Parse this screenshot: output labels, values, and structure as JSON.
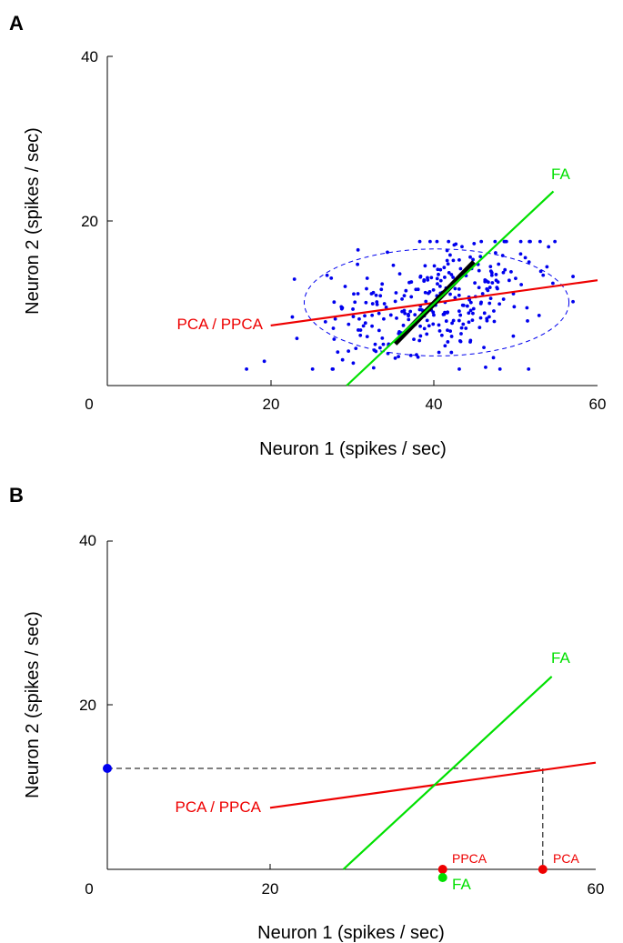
{
  "colors": {
    "points": "#0000ee",
    "pca": "#ee0000",
    "fa": "#00e000",
    "fa_segment": "#000000",
    "axis": "#000000"
  },
  "chart_data": [
    {
      "panel": "A",
      "type": "scatter",
      "xlabel": "Neuron 1 (spikes / sec)",
      "ylabel": "Neuron 2 (spikes / sec)",
      "xlim": [
        0,
        60
      ],
      "ylim": [
        0,
        40
      ],
      "x_ticks": [
        0,
        20,
        40,
        60
      ],
      "y_ticks": [
        20,
        40
      ],
      "points_description": "about 300 points centered near (40, 10), spread roughly x 22–57, y 2–17",
      "ellipse": {
        "center": [
          40.3,
          10.1
        ],
        "x_radius": 16.2,
        "y_radius": 6.5,
        "style": "dashed"
      },
      "lines": [
        {
          "label": "PCA / PPCA",
          "from": [
            20,
            7.3
          ],
          "to": [
            60,
            12.8
          ]
        },
        {
          "label": "FA",
          "from": [
            29.3,
            0
          ],
          "to": [
            54.6,
            23.6
          ]
        }
      ],
      "fa_segment": {
        "from": [
          35.2,
          5.1
        ],
        "to": [
          44.9,
          15.0
        ]
      }
    },
    {
      "panel": "B",
      "type": "line",
      "xlabel": "Neuron 1 (spikes / sec)",
      "ylabel": "Neuron 2 (spikes / sec)",
      "xlim": [
        0,
        60
      ],
      "ylim": [
        0,
        40
      ],
      "x_ticks": [
        0,
        20,
        60
      ],
      "y_ticks": [
        20,
        40
      ],
      "lines": [
        {
          "label": "PCA / PPCA",
          "from": [
            20,
            7.5
          ],
          "to": [
            60,
            13.0
          ]
        },
        {
          "label": "FA",
          "from": [
            29.0,
            0
          ],
          "to": [
            54.6,
            23.5
          ]
        }
      ],
      "observed_point": {
        "x": 0,
        "y": 12.3
      },
      "projections": [
        {
          "label": "PPCA",
          "x": 41.2,
          "y": 0
        },
        {
          "label": "PCA",
          "x": 53.5,
          "y": 0
        },
        {
          "label": "FA",
          "x": 41.2,
          "y": -1.0
        }
      ],
      "guides": [
        {
          "from": [
            0,
            12.3
          ],
          "to": [
            53.5,
            12.3
          ]
        },
        {
          "from": [
            53.5,
            12.3
          ],
          "to": [
            53.5,
            0
          ]
        }
      ]
    }
  ]
}
